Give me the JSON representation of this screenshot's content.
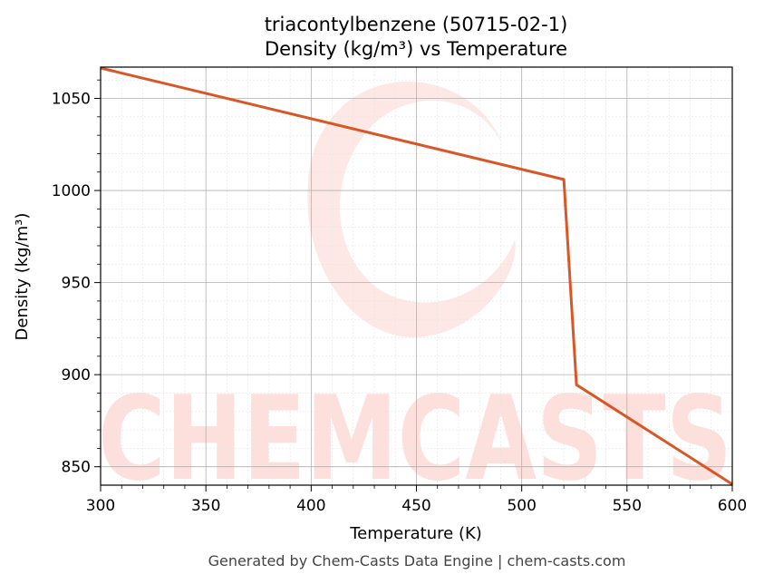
{
  "chart_data": {
    "type": "line",
    "title": "triacontylbenzene (50715-02-1)",
    "subtitle": "Density (kg/m³) vs Temperature",
    "xlabel": "Temperature (K)",
    "ylabel": "Density (kg/m³)",
    "xlim": [
      300,
      600
    ],
    "ylim": [
      840,
      1067
    ],
    "xticks": [
      300,
      350,
      400,
      450,
      500,
      550,
      600
    ],
    "yticks": [
      850,
      900,
      950,
      1000,
      1050
    ],
    "grid": true,
    "series": [
      {
        "color": "#d95726",
        "x": [
          300,
          520,
          526,
          600
        ],
        "y": [
          1066.5,
          1006,
          894.5,
          840.5
        ]
      }
    ]
  },
  "watermark": {
    "text": "CHEMCASTS",
    "color": "#fde0dc"
  },
  "footer": {
    "text": "Generated by Chem-Casts Data Engine | chem-casts.com"
  }
}
